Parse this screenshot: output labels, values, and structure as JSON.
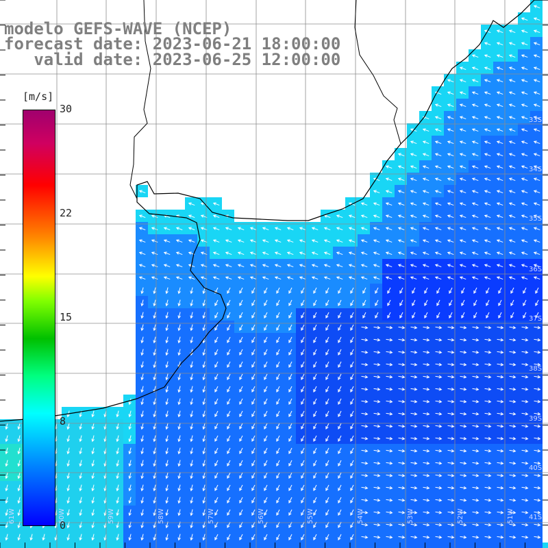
{
  "title": {
    "line1": "modelo GEFS-WAVE (NCEP)",
    "line2": "forecast date: 2023-06-21 18:00:00",
    "line3": "   valid date: 2023-06-25 12:00:00"
  },
  "colorbar": {
    "unit": "[m/s]",
    "ticks": [
      "30",
      "22",
      "15",
      "8",
      "0"
    ],
    "tick_values": [
      30,
      22,
      15,
      8,
      0
    ],
    "range": [
      0,
      30
    ]
  },
  "lat_labels": [
    "33S",
    "34S",
    "35S",
    "36S",
    "37S",
    "38S",
    "39S",
    "40S",
    "41S"
  ],
  "lon_labels": [
    "61W",
    "60W",
    "59W",
    "58W",
    "57W",
    "56W",
    "55W",
    "54W",
    "53W",
    "52W",
    "51W"
  ],
  "colors": {
    "land": "#ffffff",
    "grid": "#8c8c8c",
    "coast": "#000000",
    "arrows": "#ffffff",
    "title": "#7f7f7f"
  }
}
